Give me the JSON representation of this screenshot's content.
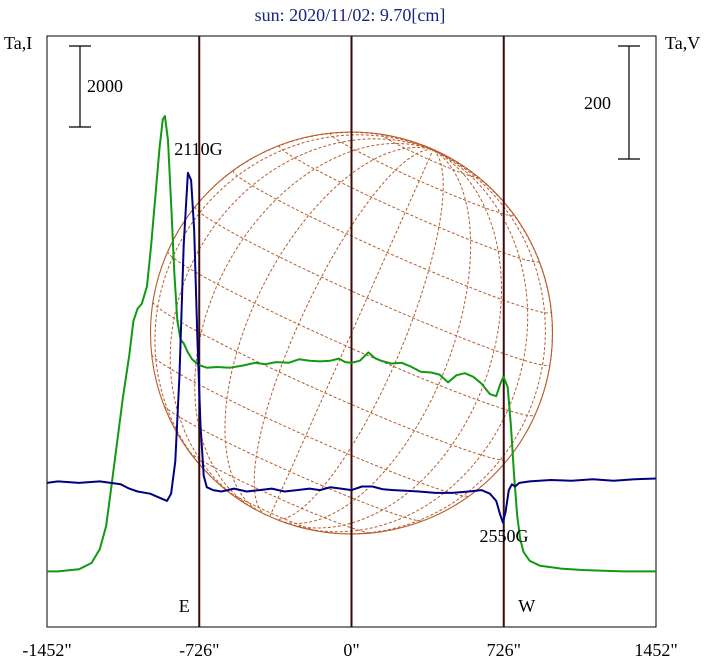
{
  "chart_data": {
    "type": "line",
    "title": "sun: 2020/11/02: 9.70[cm]",
    "left_axis_label": "Ta,I",
    "right_axis_label": "Ta,V",
    "left_scale_bar": "2000",
    "right_scale_bar": "200",
    "x_ticks": [
      {
        "value": -1452,
        "label": "-1452\""
      },
      {
        "value": -726,
        "label": "-726\""
      },
      {
        "value": 0,
        "label": "0\""
      },
      {
        "value": 726,
        "label": "726\""
      },
      {
        "value": 1452,
        "label": "1452\""
      }
    ],
    "xlim": [
      -1452,
      1452
    ],
    "markers": [
      {
        "x": -726,
        "label": "E"
      },
      {
        "x": 0,
        "label": ""
      },
      {
        "x": 726,
        "label": "W"
      }
    ],
    "annotations": [
      {
        "text": "2110G",
        "x": -730
      },
      {
        "text": "2550G",
        "x": 727
      }
    ],
    "series": [
      {
        "name": "Ta,I",
        "color": "#119911",
        "y_units": "Ta,I",
        "ylim": [
          -800,
          7700
        ],
        "points": [
          [
            -1452,
            0
          ],
          [
            -1400,
            0
          ],
          [
            -1300,
            30
          ],
          [
            -1240,
            120
          ],
          [
            -1200,
            320
          ],
          [
            -1170,
            650
          ],
          [
            -1150,
            1100
          ],
          [
            -1120,
            1800
          ],
          [
            -1090,
            2500
          ],
          [
            -1060,
            3100
          ],
          [
            -1040,
            3600
          ],
          [
            -1020,
            3780
          ],
          [
            -1000,
            3850
          ],
          [
            -975,
            4100
          ],
          [
            -955,
            4700
          ],
          [
            -935,
            5400
          ],
          [
            -915,
            6100
          ],
          [
            -900,
            6500
          ],
          [
            -890,
            6550
          ],
          [
            -875,
            6200
          ],
          [
            -860,
            5300
          ],
          [
            -845,
            4300
          ],
          [
            -830,
            3600
          ],
          [
            -815,
            3330
          ],
          [
            -800,
            3280
          ],
          [
            -780,
            3150
          ],
          [
            -760,
            3050
          ],
          [
            -740,
            3000
          ],
          [
            -720,
            2960
          ],
          [
            -690,
            2930
          ],
          [
            -640,
            2940
          ],
          [
            -580,
            2930
          ],
          [
            -520,
            2960
          ],
          [
            -460,
            3000
          ],
          [
            -410,
            2980
          ],
          [
            -360,
            3010
          ],
          [
            -300,
            3000
          ],
          [
            -250,
            3050
          ],
          [
            -200,
            3030
          ],
          [
            -150,
            3020
          ],
          [
            -100,
            3030
          ],
          [
            -60,
            3060
          ],
          [
            -30,
            3010
          ],
          [
            0,
            3000
          ],
          [
            40,
            3030
          ],
          [
            80,
            3150
          ],
          [
            110,
            3070
          ],
          [
            140,
            3030
          ],
          [
            190,
            2990
          ],
          [
            240,
            3000
          ],
          [
            280,
            2950
          ],
          [
            330,
            2870
          ],
          [
            380,
            2860
          ],
          [
            420,
            2830
          ],
          [
            460,
            2720
          ],
          [
            500,
            2820
          ],
          [
            540,
            2850
          ],
          [
            580,
            2800
          ],
          [
            620,
            2700
          ],
          [
            660,
            2550
          ],
          [
            690,
            2520
          ],
          [
            710,
            2700
          ],
          [
            725,
            2800
          ],
          [
            745,
            2650
          ],
          [
            760,
            2100
          ],
          [
            775,
            1400
          ],
          [
            790,
            800
          ],
          [
            805,
            460
          ],
          [
            820,
            280
          ],
          [
            850,
            150
          ],
          [
            900,
            80
          ],
          [
            1000,
            40
          ],
          [
            1100,
            20
          ],
          [
            1200,
            10
          ],
          [
            1300,
            0
          ],
          [
            1452,
            0
          ]
        ]
      },
      {
        "name": "Ta,V",
        "color": "#000080",
        "y_units": "Ta,V",
        "ylim": [
          -200,
          620
        ],
        "points": [
          [
            -1452,
            0
          ],
          [
            -1400,
            2
          ],
          [
            -1300,
            0
          ],
          [
            -1200,
            2
          ],
          [
            -1100,
            -2
          ],
          [
            -1060,
            -8
          ],
          [
            -1020,
            -12
          ],
          [
            -960,
            -15
          ],
          [
            -920,
            -20
          ],
          [
            -880,
            -25
          ],
          [
            -860,
            -15
          ],
          [
            -840,
            30
          ],
          [
            -820,
            150
          ],
          [
            -800,
            330
          ],
          [
            -780,
            430
          ],
          [
            -765,
            420
          ],
          [
            -750,
            350
          ],
          [
            -735,
            200
          ],
          [
            -720,
            80
          ],
          [
            -705,
            10
          ],
          [
            -690,
            -6
          ],
          [
            -660,
            -10
          ],
          [
            -620,
            -12
          ],
          [
            -560,
            -8
          ],
          [
            -500,
            -12
          ],
          [
            -440,
            -10
          ],
          [
            -380,
            -8
          ],
          [
            -320,
            -12
          ],
          [
            -260,
            -10
          ],
          [
            -200,
            -8
          ],
          [
            -150,
            -10
          ],
          [
            -100,
            -6
          ],
          [
            -50,
            -8
          ],
          [
            0,
            -10
          ],
          [
            50,
            -5
          ],
          [
            100,
            -5
          ],
          [
            150,
            -9
          ],
          [
            200,
            -10
          ],
          [
            260,
            -11
          ],
          [
            320,
            -12
          ],
          [
            400,
            -14
          ],
          [
            480,
            -14
          ],
          [
            560,
            -12
          ],
          [
            620,
            -10
          ],
          [
            660,
            -15
          ],
          [
            690,
            -25
          ],
          [
            710,
            -45
          ],
          [
            722,
            -55
          ],
          [
            735,
            -40
          ],
          [
            750,
            -10
          ],
          [
            765,
            -2
          ],
          [
            780,
            -5
          ],
          [
            800,
            0
          ],
          [
            850,
            2
          ],
          [
            950,
            4
          ],
          [
            1050,
            3
          ],
          [
            1150,
            5
          ],
          [
            1250,
            3
          ],
          [
            1350,
            5
          ],
          [
            1452,
            6
          ]
        ]
      }
    ]
  }
}
